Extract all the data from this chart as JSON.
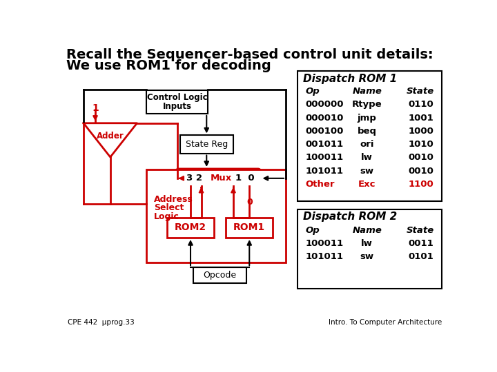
{
  "title_line1": "Recall the Sequencer-based control unit details:",
  "title_line2": "We use ROM1 for decoding",
  "bg_color": "#ffffff",
  "red_color": "#cc0000",
  "black_color": "#000000",
  "dispatch_rom1_title": "Dispatch ROM 1",
  "dispatch_rom1_headers": [
    "Op",
    "Name",
    "State"
  ],
  "dispatch_rom1_data": [
    [
      "000000",
      "Rtype",
      "0110"
    ],
    [
      "000010",
      "jmp",
      "1001"
    ],
    [
      "000100",
      "beq",
      "1000"
    ],
    [
      "001011",
      "ori",
      "1010"
    ],
    [
      "100011",
      "lw",
      "0010"
    ],
    [
      "101011",
      "sw",
      "0010"
    ],
    [
      "Other",
      "Exc",
      "1100"
    ]
  ],
  "dispatch_rom1_last_row_color": "#cc0000",
  "dispatch_rom2_title": "Dispatch ROM 2",
  "dispatch_rom2_headers": [
    "Op",
    "Name",
    "State"
  ],
  "dispatch_rom2_data": [
    [
      "100011",
      "lw",
      "0011"
    ],
    [
      "101011",
      "sw",
      "0101"
    ]
  ],
  "footer_left": "CPE 442  μprog.33",
  "footer_right": "Intro. To Computer Architecture"
}
